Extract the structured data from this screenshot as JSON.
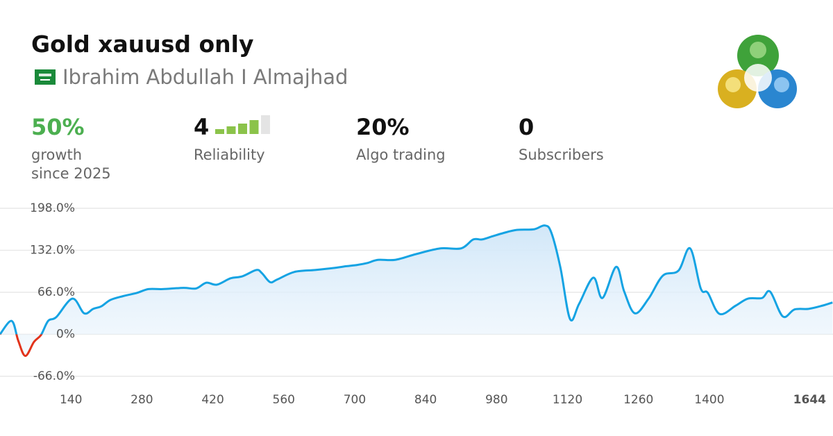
{
  "header": {
    "title": "Gold xauusd only",
    "author": "Ibrahim Abdullah I Almajhad"
  },
  "stats": [
    {
      "value": "50%",
      "label": [
        "growth",
        "since 2025"
      ],
      "color": "#4caf50"
    },
    {
      "value": 4,
      "label": [
        "Reliability"
      ],
      "color": "#111111"
    },
    {
      "value": "20%",
      "label": [
        "Algo trading"
      ],
      "color": "#111111"
    },
    {
      "value": 0,
      "label": [
        "Subscribers"
      ],
      "color": "#111111"
    }
  ],
  "chart_data": {
    "type": "line",
    "x": [
      0,
      23,
      36,
      50,
      67,
      81,
      95,
      111,
      143,
      166,
      184,
      200,
      218,
      243,
      270,
      293,
      321,
      362,
      387,
      407,
      428,
      455,
      478,
      506,
      517,
      533,
      547,
      581,
      622,
      657,
      684,
      705,
      725,
      746,
      780,
      821,
      869,
      910,
      934,
      951,
      972,
      993,
      1020,
      1054,
      1075,
      1088,
      1106,
      1125,
      1143,
      1171,
      1189,
      1216,
      1232,
      1253,
      1280,
      1308,
      1339,
      1362,
      1383,
      1397,
      1420,
      1452,
      1476,
      1504,
      1520,
      1545,
      1568,
      1596,
      1623,
      1643
    ],
    "values": [
      0,
      21,
      -10,
      -34,
      -12,
      -1,
      21,
      27,
      56,
      33,
      40,
      44,
      54,
      60,
      65,
      71,
      71,
      73,
      72,
      81,
      78,
      88,
      91,
      101,
      96,
      82,
      86,
      98,
      101,
      104,
      107,
      109,
      112,
      117,
      117,
      126,
      135,
      135,
      149,
      149,
      154,
      159,
      164,
      165,
      171,
      160,
      105,
      24,
      48,
      89,
      57,
      106,
      67,
      33,
      56,
      92,
      100,
      135,
      72,
      65,
      32,
      45,
      56,
      57,
      67,
      28,
      39,
      40,
      45,
      50
    ],
    "color": "#15a3e3",
    "negative_color": "#e2331b",
    "xlim": [
      0,
      1644
    ],
    "ylim": [
      -66,
      198
    ],
    "xticks": [
      140,
      280,
      420,
      560,
      700,
      840,
      980,
      1120,
      1260,
      1400,
      1644
    ],
    "yticks": [
      {
        "value": 198,
        "label": "198.0%"
      },
      {
        "value": 132,
        "label": "132.0%"
      },
      {
        "value": 66,
        "label": "66.0%"
      },
      {
        "value": 0,
        "label": "0%"
      },
      {
        "value": -66,
        "label": "-66.0%"
      }
    ],
    "grid": true
  }
}
